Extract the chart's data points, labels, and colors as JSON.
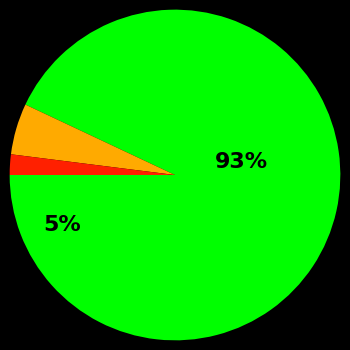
{
  "slices": [
    93,
    5,
    2
  ],
  "colors": [
    "#00ff00",
    "#ffaa00",
    "#ff2000"
  ],
  "labels": [
    "93%",
    "5%",
    ""
  ],
  "startangle": 180,
  "background_color": "#000000",
  "text_color": "#000000",
  "font_size": 16,
  "font_weight": "bold"
}
